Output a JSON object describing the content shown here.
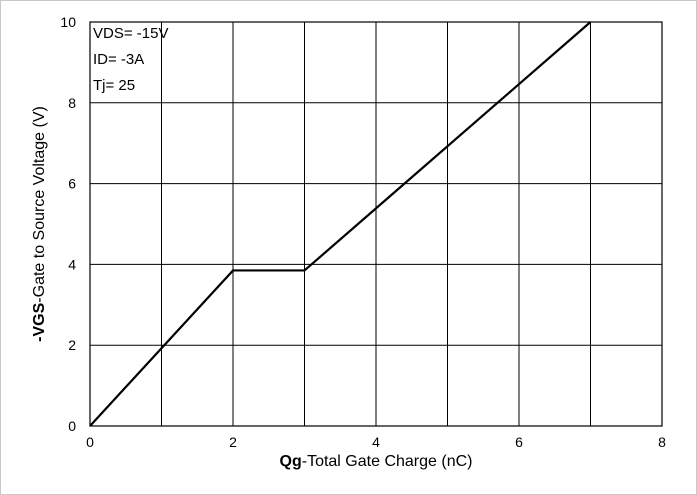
{
  "chart_data": {
    "type": "line",
    "xlabel_bold": "Qg",
    "xlabel_rest": "-Total Gate Charge (nC)",
    "ylabel_bold": "-VGS",
    "ylabel_rest": "-Gate to Source Voltage (V)",
    "xlim": [
      0,
      8
    ],
    "ylim": [
      0,
      10
    ],
    "x_ticks": [
      0,
      2,
      4,
      6,
      8
    ],
    "y_ticks": [
      0,
      2,
      4,
      6,
      8,
      10
    ],
    "x_grid": [
      1,
      2,
      3,
      4,
      5,
      6,
      7,
      8
    ],
    "y_grid": [
      2,
      4,
      6,
      8,
      10
    ],
    "grid": true,
    "annotations": [
      "VDS= -15V",
      "ID= -3A",
      "Tj= 25"
    ],
    "series": [
      {
        "x": [
          0,
          2,
          3,
          7
        ],
        "y": [
          0,
          3.85,
          3.85,
          10
        ],
        "color": "#000000"
      }
    ]
  }
}
